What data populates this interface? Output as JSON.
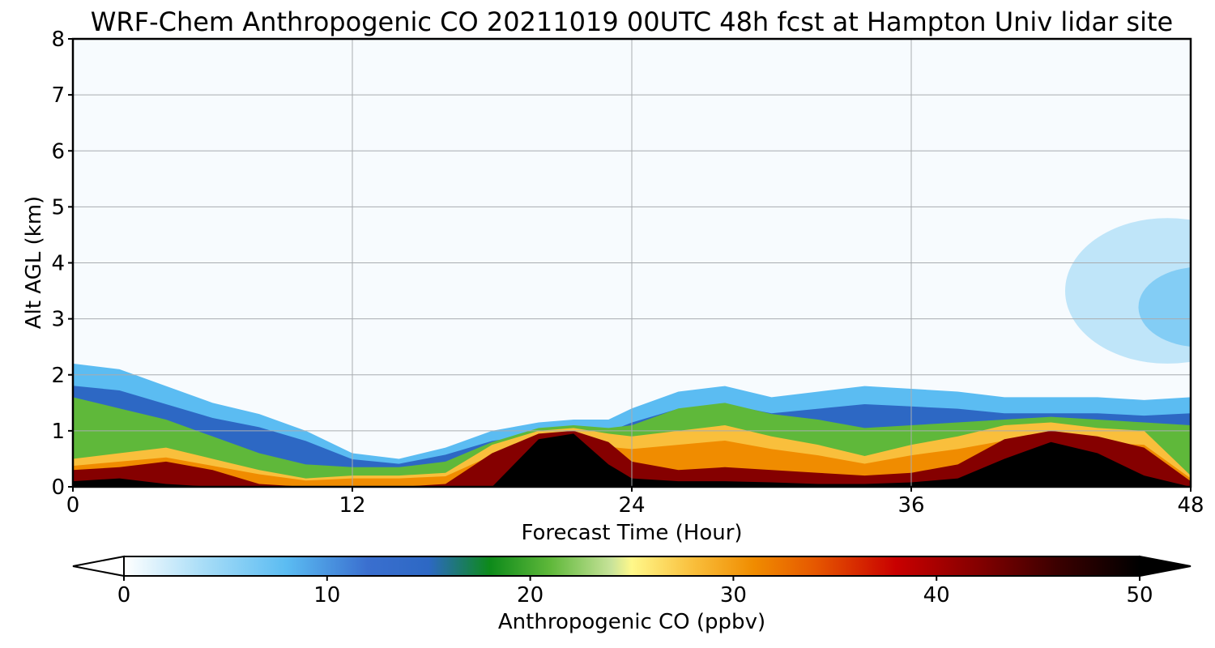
{
  "chart_data": {
    "type": "heatmap",
    "title": "WRF-Chem Anthropogenic CO  20211019 00UTC 48h fcst at Hampton Univ lidar site",
    "xlabel": "Forecast Time (Hour)",
    "ylabel": "Alt AGL (km)",
    "xlim": [
      0,
      48
    ],
    "ylim": [
      0,
      8
    ],
    "x_ticks": [
      "0",
      "12",
      "24",
      "36",
      "48"
    ],
    "y_ticks": [
      "0",
      "1",
      "2",
      "3",
      "4",
      "5",
      "6",
      "7",
      "8"
    ],
    "grid": true,
    "colorbar": {
      "label": "Anthropogenic CO  (ppbv)",
      "range": [
        0,
        50
      ],
      "ticks": [
        "0",
        "10",
        "20",
        "30",
        "40",
        "50"
      ],
      "extend": "both",
      "colors": [
        {
          "v": 0,
          "c": "#ffffff"
        },
        {
          "v": 4,
          "c": "#a6dcf7"
        },
        {
          "v": 8,
          "c": "#5bbcf2"
        },
        {
          "v": 12,
          "c": "#3a6fcf"
        },
        {
          "v": 15,
          "c": "#2d68c4"
        },
        {
          "v": 18,
          "c": "#0d8a1a"
        },
        {
          "v": 21,
          "c": "#5fb83a"
        },
        {
          "v": 24,
          "c": "#c8e39a"
        },
        {
          "v": 25,
          "c": "#fff88a"
        },
        {
          "v": 28,
          "c": "#f9bf3c"
        },
        {
          "v": 31,
          "c": "#f08c00"
        },
        {
          "v": 34,
          "c": "#e65800"
        },
        {
          "v": 38,
          "c": "#c90000"
        },
        {
          "v": 42,
          "c": "#850000"
        },
        {
          "v": 46,
          "c": "#3a0000"
        },
        {
          "v": 50,
          "c": "#000000"
        }
      ]
    },
    "series_description": "Vertical CO profile vs forecast hour",
    "boundary_layer": {
      "hours": [
        0,
        2,
        4,
        6,
        8,
        10,
        12,
        14,
        16,
        18,
        20,
        21.5,
        23,
        24,
        26,
        28,
        30,
        32,
        34,
        36,
        38,
        40,
        42,
        44,
        46,
        48
      ],
      "top_km": [
        2.2,
        2.1,
        1.8,
        1.5,
        1.3,
        1.0,
        0.6,
        0.5,
        0.7,
        1.0,
        1.15,
        1.2,
        1.2,
        1.4,
        1.7,
        1.8,
        1.6,
        1.7,
        1.8,
        1.75,
        1.7,
        1.6,
        1.6,
        1.6,
        1.55,
        1.6
      ],
      "green_km": [
        1.6,
        1.4,
        1.2,
        0.9,
        0.6,
        0.4,
        0.35,
        0.35,
        0.45,
        0.8,
        1.05,
        1.1,
        1.05,
        1.1,
        1.4,
        1.5,
        1.3,
        1.2,
        1.05,
        1.1,
        1.15,
        1.2,
        1.25,
        1.2,
        1.15,
        1.1
      ],
      "yellow_km": [
        0.5,
        0.6,
        0.7,
        0.5,
        0.3,
        0.15,
        0.2,
        0.2,
        0.25,
        0.75,
        1.0,
        1.05,
        0.95,
        0.9,
        1.0,
        1.1,
        0.9,
        0.75,
        0.55,
        0.75,
        0.9,
        1.1,
        1.15,
        1.05,
        1.0,
        0.2
      ],
      "red_km": [
        0.3,
        0.35,
        0.45,
        0.3,
        0.05,
        0.0,
        0.0,
        0.0,
        0.05,
        0.6,
        0.95,
        1.0,
        0.8,
        0.45,
        0.3,
        0.35,
        0.3,
        0.25,
        0.2,
        0.25,
        0.4,
        0.85,
        1.0,
        0.9,
        0.7,
        0.1
      ],
      "core_km": [
        0.1,
        0.15,
        0.05,
        0.0,
        0.0,
        0.0,
        0.0,
        0.0,
        0.0,
        0.0,
        0.85,
        0.95,
        0.4,
        0.15,
        0.1,
        0.1,
        0.08,
        0.05,
        0.05,
        0.08,
        0.15,
        0.5,
        0.8,
        0.6,
        0.2,
        0.0
      ]
    },
    "aloft_plume": {
      "hours": [
        42,
        44,
        46,
        48
      ],
      "alt_range_km": [
        2.2,
        4.8
      ],
      "peak_ppbv": 6
    }
  }
}
